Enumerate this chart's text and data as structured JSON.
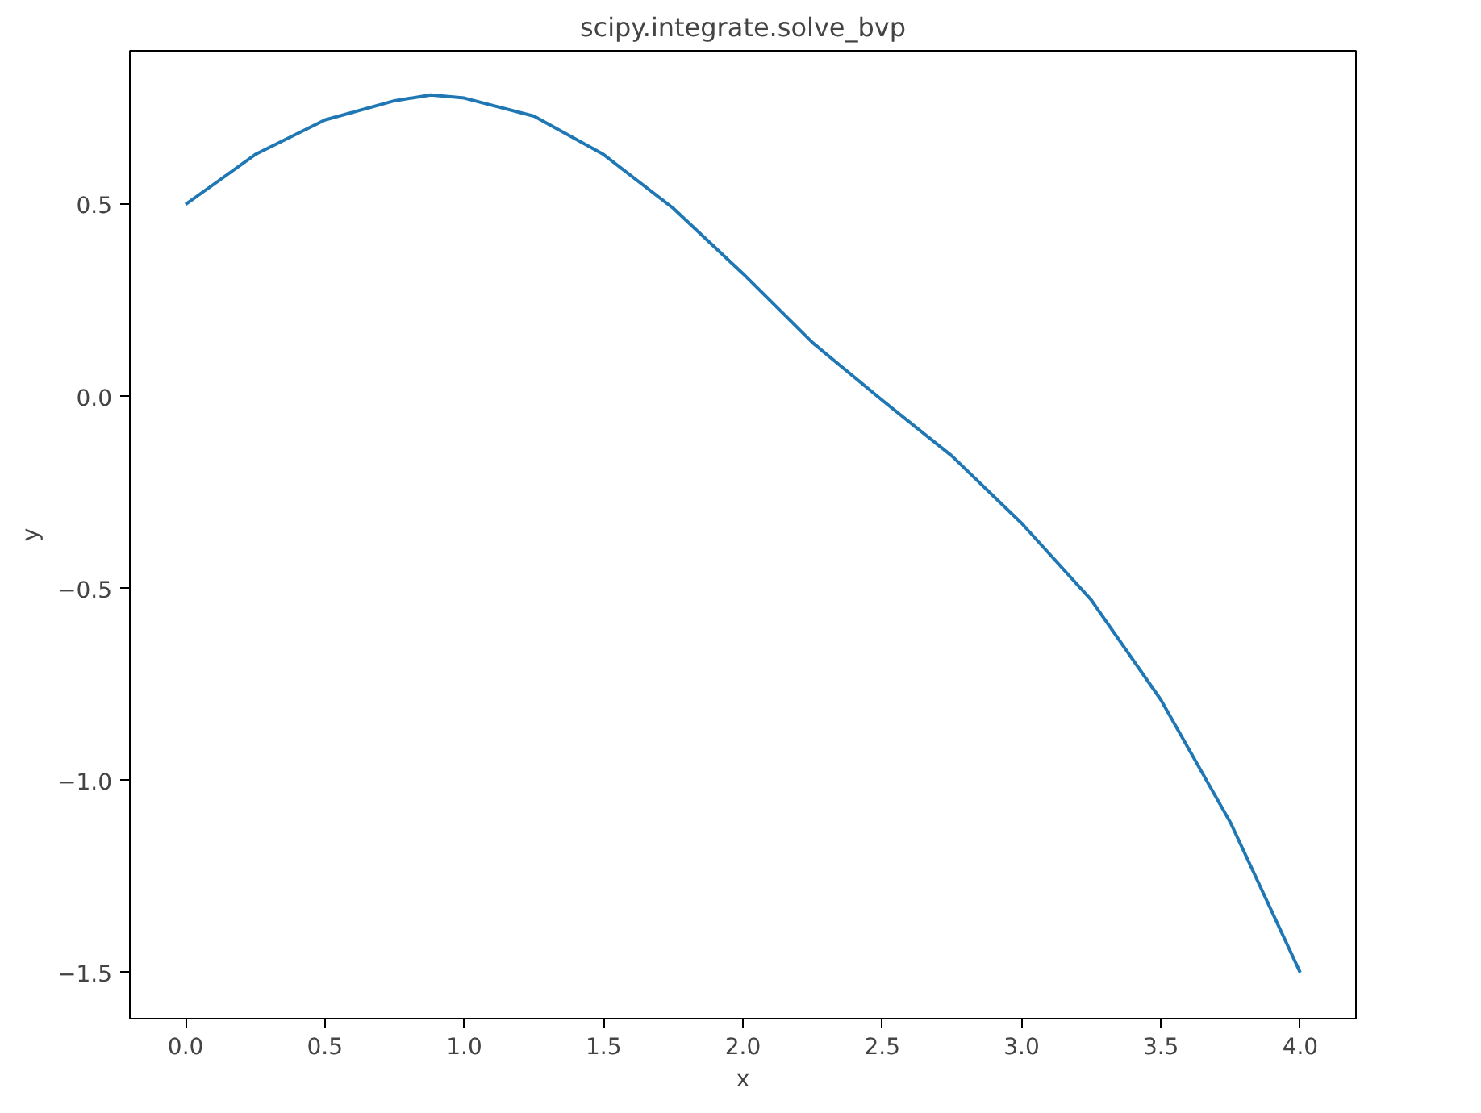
{
  "chart_data": {
    "type": "line",
    "title": "scipy.integrate.solve_bvp",
    "xlabel": "x",
    "ylabel": "y",
    "x": [
      0,
      0.25,
      0.5,
      0.75,
      0.88,
      1.0,
      1.25,
      1.5,
      1.75,
      2.0,
      2.25,
      2.5,
      2.75,
      3.0,
      3.25,
      3.5,
      3.75,
      4.0
    ],
    "series": [
      {
        "color": "#1f77b4",
        "values": [
          0.5,
          0.63,
          0.72,
          0.77,
          0.785,
          0.777,
          0.73,
          0.63,
          0.49,
          0.32,
          0.14,
          -0.01,
          -0.155,
          -0.33,
          -0.53,
          -0.79,
          -1.11,
          -1.5
        ]
      }
    ],
    "xlim": [
      -0.2,
      4.2
    ],
    "ylim": [
      -1.62,
      0.9
    ],
    "xticks": [
      {
        "value": 0,
        "label": "0.0"
      },
      0.5,
      {
        "value": 1,
        "label": "1.0"
      },
      1.5,
      {
        "value": 2,
        "label": "2.0"
      },
      2.5,
      {
        "value": 3,
        "label": "3.0"
      },
      3.5,
      {
        "value": 4,
        "label": "4.0"
      }
    ],
    "yticks": [
      {
        "value": -1.5,
        "label": "−1.5"
      },
      {
        "value": -1.0,
        "label": "−1.0"
      },
      {
        "value": -0.5,
        "label": "−0.5"
      },
      {
        "value": 0.0,
        "label": "0.0"
      },
      {
        "value": 0.5,
        "label": "0.5"
      }
    ],
    "grid": false,
    "marker": "none",
    "line_style": "solid"
  }
}
